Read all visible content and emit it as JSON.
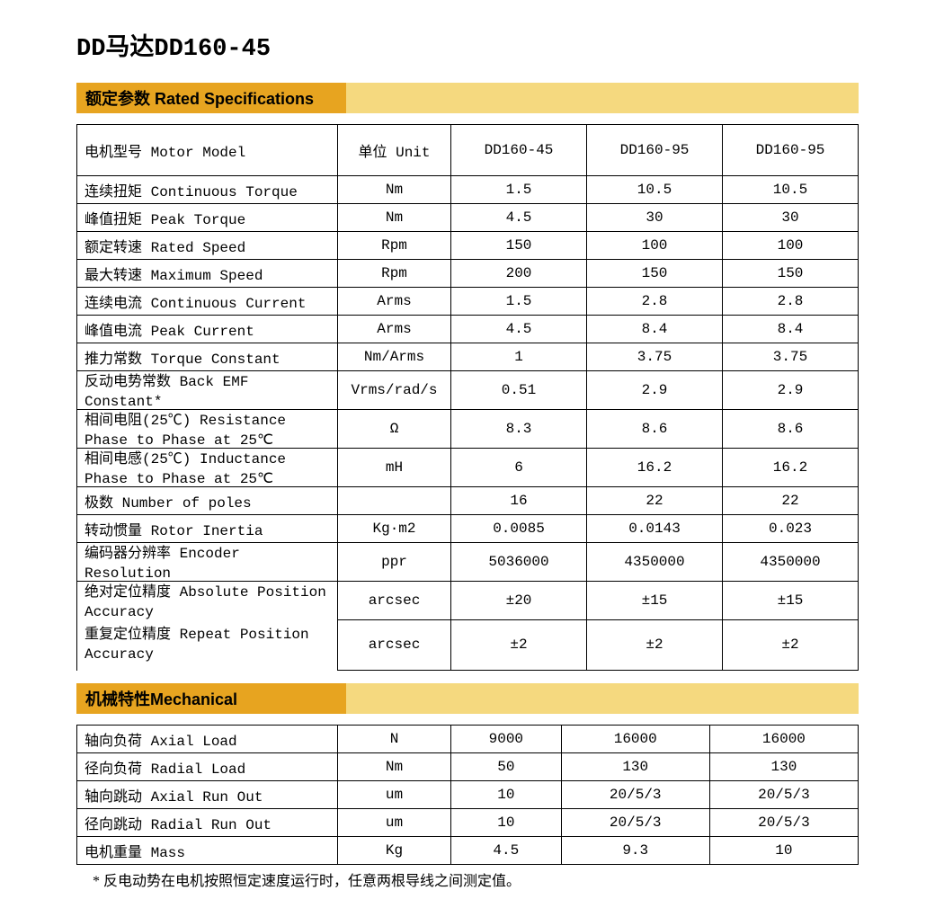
{
  "title": "DD马达DD160-45",
  "sections": {
    "rated": "额定参数 Rated Specifications",
    "mech": "机械特性Mechanical"
  },
  "colors": {
    "header_main": "#e7a420",
    "header_rest": "#f5d97f",
    "border": "#000000",
    "text": "#000000",
    "background": "#ffffff"
  },
  "table1": {
    "header": {
      "c0": "电机型号 Motor Model",
      "c1": "单位 Unit",
      "c2": "DD160-45",
      "c3": "DD160-95",
      "c4": "DD160-95"
    },
    "rows": [
      {
        "label": "连续扭矩 Continuous Torque",
        "unit": "Nm",
        "v1": "1.5",
        "v2": "10.5",
        "v3": "10.5"
      },
      {
        "label": "峰值扭矩 Peak Torque",
        "unit": "Nm",
        "v1": "4.5",
        "v2": "30",
        "v3": "30"
      },
      {
        "label": "额定转速 Rated Speed",
        "unit": "Rpm",
        "v1": "150",
        "v2": "100",
        "v3": "100"
      },
      {
        "label": "最大转速 Maximum Speed",
        "unit": "Rpm",
        "v1": "200",
        "v2": "150",
        "v3": "150"
      },
      {
        "label": "连续电流 Continuous Current",
        "unit": "Arms",
        "v1": "1.5",
        "v2": "2.8",
        "v3": "2.8"
      },
      {
        "label": "峰值电流 Peak Current",
        "unit": "Arms",
        "v1": "4.5",
        "v2": "8.4",
        "v3": "8.4"
      },
      {
        "label": "推力常数 Torque Constant",
        "unit": "Nm/Arms",
        "v1": "1",
        "v2": "3.75",
        "v3": "3.75"
      },
      {
        "label": "反动电势常数 Back EMF Constant*",
        "unit": "Vrms/rad/s",
        "v1": "0.51",
        "v2": "2.9",
        "v3": "2.9"
      },
      {
        "label": "相间电阻(25℃) Resistance Phase to Phase at 25℃",
        "unit": "Ω",
        "v1": "8.3",
        "v2": "8.6",
        "v3": "8.6"
      },
      {
        "label": "相间电感(25℃) Inductance Phase to Phase at 25℃",
        "unit": "mH",
        "v1": "6",
        "v2": "16.2",
        "v3": "16.2"
      },
      {
        "label": "极数 Number of poles",
        "unit": "",
        "v1": "16",
        "v2": "22",
        "v3": "22"
      },
      {
        "label": "转动惯量 Rotor Inertia",
        "unit": "Kg·m2",
        "v1": "0.0085",
        "v2": "0.0143",
        "v3": "0.023"
      },
      {
        "label": "编码器分辨率 Encoder Resolution",
        "unit": "ppr",
        "v1": "5036000",
        "v2": "4350000",
        "v3": "4350000"
      },
      {
        "label": "绝对定位精度 Absolute Position Accuracy",
        "unit": "arcsec",
        "v1": "±20",
        "v2": "±15",
        "v3": "±15"
      },
      {
        "label": "重复定位精度 Repeat Position Accuracy",
        "unit": "arcsec",
        "v1": "±2",
        "v2": "±2",
        "v3": "±2"
      }
    ]
  },
  "table2": {
    "rows": [
      {
        "label": "轴向负荷 Axial Load",
        "unit": "N",
        "v1": "9000",
        "v2": "16000",
        "v3": "16000"
      },
      {
        "label": "径向负荷 Radial Load",
        "unit": "Nm",
        "v1": "50",
        "v2": "130",
        "v3": "130"
      },
      {
        "label": "轴向跳动 Axial Run Out",
        "unit": "um",
        "v1": "10",
        "v2": "20/5/3",
        "v3": "20/5/3"
      },
      {
        "label": "径向跳动 Radial Run Out",
        "unit": "um",
        "v1": "10",
        "v2": "20/5/3",
        "v3": "20/5/3"
      },
      {
        "label": "电机重量 Mass",
        "unit": "Kg",
        "v1": "4.5",
        "v2": "9.3",
        "v3": "10"
      }
    ]
  },
  "footnote": "* 反电动势在电机按照恒定速度运行时，任意两根导线之间测定值。"
}
